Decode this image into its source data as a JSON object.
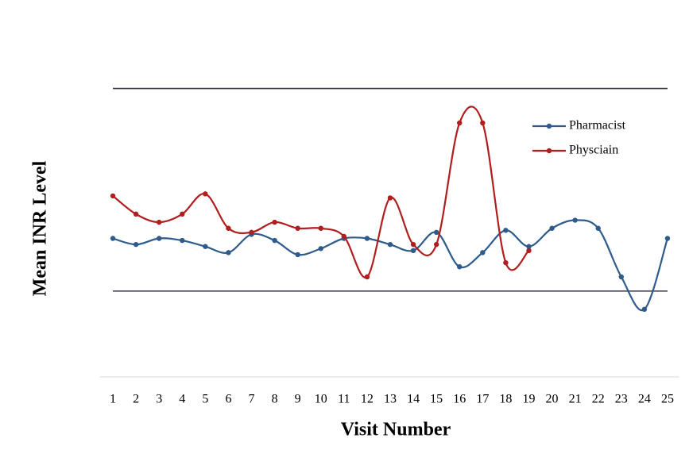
{
  "chart_data": {
    "type": "line",
    "x_label": "Visit Number",
    "y_label": "Mean INR Level",
    "categories": [
      "1",
      "2",
      "3",
      "4",
      "5",
      "6",
      "7",
      "8",
      "9",
      "10",
      "11",
      "12",
      "13",
      "14",
      "15",
      "16",
      "17",
      "18",
      "19",
      "20",
      "21",
      "22",
      "23",
      "24",
      "25"
    ],
    "series": [
      {
        "name": "Pharmacist",
        "color": "#2e5a8c",
        "values": [
          2.26,
          2.23,
          2.26,
          2.25,
          2.22,
          2.19,
          2.28,
          2.25,
          2.18,
          2.21,
          2.26,
          2.26,
          2.23,
          2.2,
          2.29,
          2.12,
          2.19,
          2.3,
          2.22,
          2.31,
          2.35,
          2.31,
          2.07,
          1.91,
          2.26
        ]
      },
      {
        "name": "Physciain",
        "color": "#b01e1e",
        "values": [
          2.47,
          2.38,
          2.34,
          2.38,
          2.48,
          2.31,
          2.29,
          2.34,
          2.31,
          2.31,
          2.27,
          2.07,
          2.46,
          2.23,
          2.23,
          2.83,
          2.83,
          2.14,
          2.2,
          null,
          null,
          null,
          null,
          null,
          null
        ]
      }
    ],
    "reference_lines": [
      2,
      3
    ],
    "ylim": [
      1.6,
      3.3
    ],
    "legend": "upper right"
  }
}
